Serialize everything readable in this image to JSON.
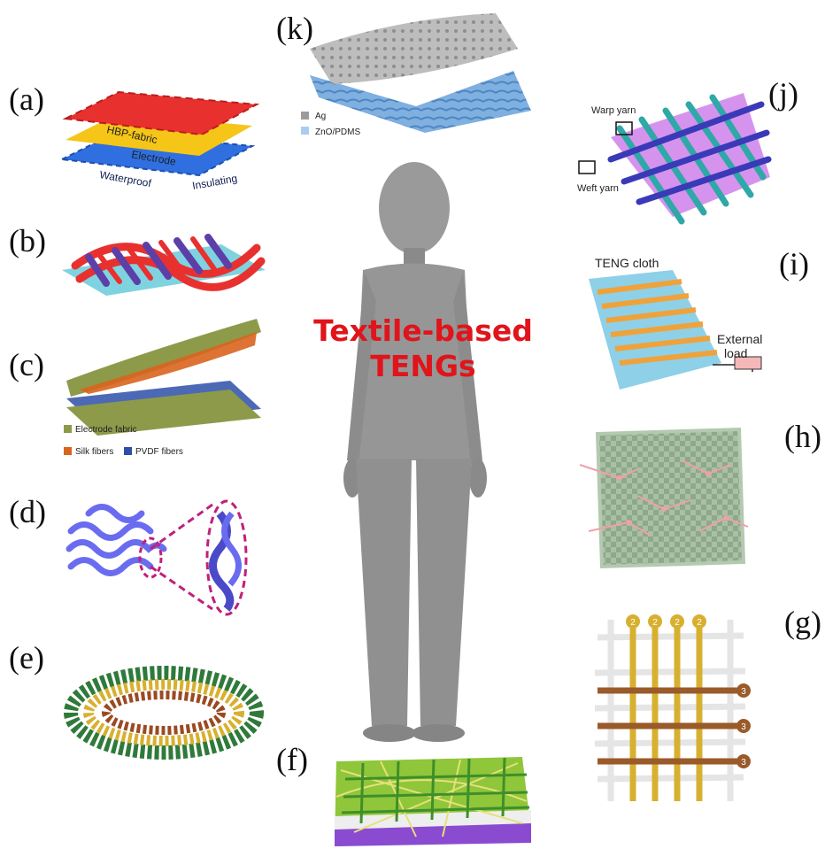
{
  "center_title": {
    "line1": "Textile-based",
    "line2": "TENGs",
    "color": "#e0141a"
  },
  "panels": {
    "a": {
      "label": "(a)",
      "layers": [
        "HBP-fabric",
        "Electrode",
        "Waterproof",
        "Insulating"
      ]
    },
    "b": {
      "label": "(b)"
    },
    "c": {
      "label": "(c)",
      "legend": [
        "Electrode fabric",
        "Silk fibers",
        "PVDF fibers"
      ]
    },
    "d": {
      "label": "(d)"
    },
    "e": {
      "label": "(e)"
    },
    "f": {
      "label": "(f)"
    },
    "g": {
      "label": "(g)",
      "markers": [
        "2",
        "3"
      ]
    },
    "h": {
      "label": "(h)"
    },
    "i": {
      "label": "(i)",
      "title": "TENG cloth",
      "load_line1": "External",
      "load_line2": "load"
    },
    "j": {
      "label": "(j)",
      "warp": "Warp yarn",
      "weft": "Weft yarn"
    },
    "k": {
      "label": "(k)",
      "legend": [
        "Ag",
        "ZnO/PDMS"
      ]
    }
  },
  "colors": {
    "red": "#e8312f",
    "yellow": "#f5c518",
    "blue": "#2f6fe0",
    "teal": "#7fd3e0",
    "olive": "#8d9a4a",
    "orange": "#d9641e",
    "navy": "#2d4fa8",
    "violet": "#6a6cf0",
    "magenta": "#c0207a",
    "green": "#2f7a3a",
    "gold": "#d8b030",
    "brown": "#9a4a22",
    "lime": "#8fc63a",
    "purple": "#8a4bd0",
    "mint": "#8da88a",
    "pink": "#f0a0a8",
    "orangeyarn": "#f0a23a",
    "skyyarn": "#8ed0e8",
    "copper": "#9a5a2a",
    "grey": "#9b9b9b"
  }
}
